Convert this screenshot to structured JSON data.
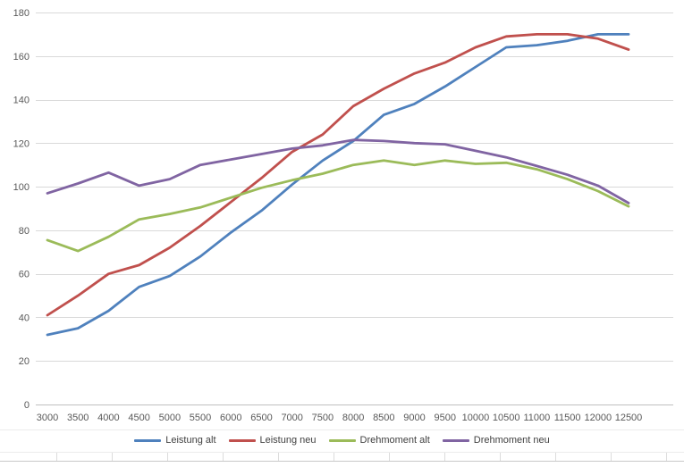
{
  "chart_data": {
    "type": "line",
    "title": "",
    "xlabel": "",
    "ylabel": "",
    "ylim": [
      0,
      180
    ],
    "y_ticks": [
      0,
      20,
      40,
      60,
      80,
      100,
      120,
      140,
      160,
      180
    ],
    "grid": true,
    "legend_position": "bottom",
    "categories": [
      "3000",
      "3500",
      "4000",
      "4500",
      "5000",
      "5500",
      "6000",
      "6500",
      "7000",
      "7500",
      "8000",
      "8500",
      "9000",
      "9500",
      "10000",
      "10500",
      "11000",
      "11500",
      "12000",
      "12500"
    ],
    "series": [
      {
        "name": "Leistung alt",
        "color": "#4f81bd",
        "values": [
          32,
          35,
          43,
          54,
          59,
          68,
          79,
          89,
          101,
          112,
          121,
          133,
          138,
          146,
          155,
          164,
          165,
          167,
          170,
          170
        ]
      },
      {
        "name": "Leistung neu",
        "color": "#c0504d",
        "values": [
          41,
          50,
          60,
          64,
          72,
          82,
          93,
          104,
          116,
          124,
          137,
          145,
          152,
          157,
          164,
          169,
          170,
          170,
          168,
          163
        ]
      },
      {
        "name": "Drehmoment alt",
        "color": "#9bbb59",
        "values": [
          75.5,
          70.5,
          77,
          85,
          87.5,
          90.5,
          95,
          99.5,
          103,
          106,
          110,
          112,
          110,
          112,
          110.5,
          111,
          108,
          103.5,
          98,
          91
        ]
      },
      {
        "name": "Drehmoment neu",
        "color": "#8064a2",
        "values": [
          97,
          101.5,
          106.5,
          100.5,
          103.5,
          110,
          112.5,
          115,
          117.5,
          119,
          121.5,
          121,
          120,
          119.5,
          116.5,
          113.5,
          109.5,
          105.5,
          100.5,
          92.5
        ]
      }
    ],
    "colors": {
      "gridline": "#d9d9d9",
      "axis_line": "#bfbfbf",
      "tick_label": "#595959",
      "legend_text": "#404040",
      "background": "#ffffff"
    }
  }
}
